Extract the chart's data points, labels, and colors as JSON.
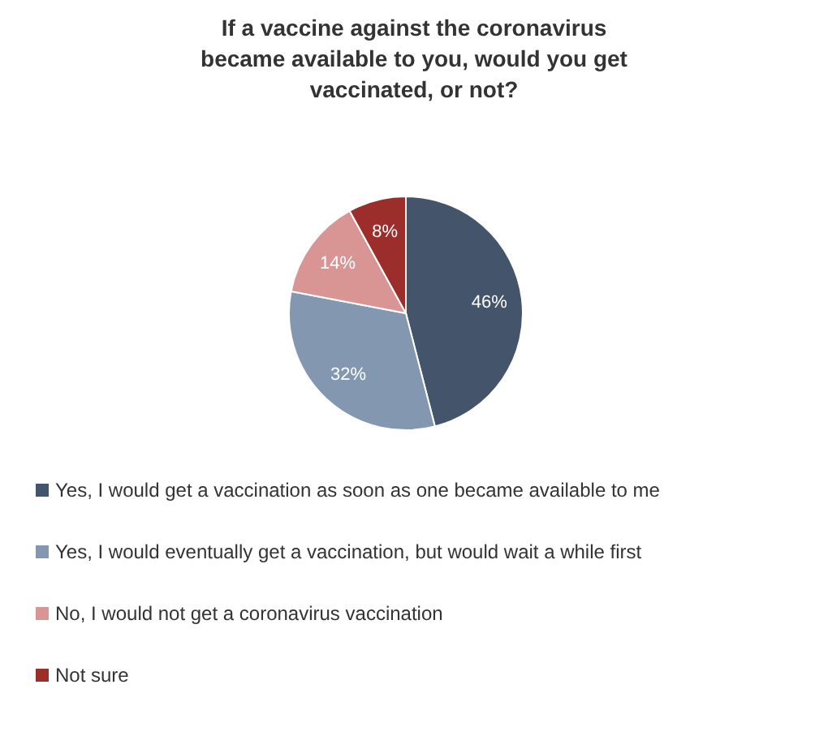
{
  "chart_data": {
    "type": "pie",
    "title": "If a vaccine against the coronavirus became available to you, would you get vaccinated, or not?",
    "categories": [
      "Yes, I would get a vaccination as soon as one became available to me",
      "Yes, I would eventually get a vaccination, but would wait a while first",
      "No, I would not get a coronavirus vaccination",
      "Not sure"
    ],
    "values": [
      46,
      32,
      14,
      8
    ],
    "colors": [
      "#44546a",
      "#8497b0",
      "#d99594",
      "#9b2d2a"
    ],
    "value_labels": [
      "46%",
      "32%",
      "14%",
      "8%"
    ],
    "legend": "bottom"
  }
}
